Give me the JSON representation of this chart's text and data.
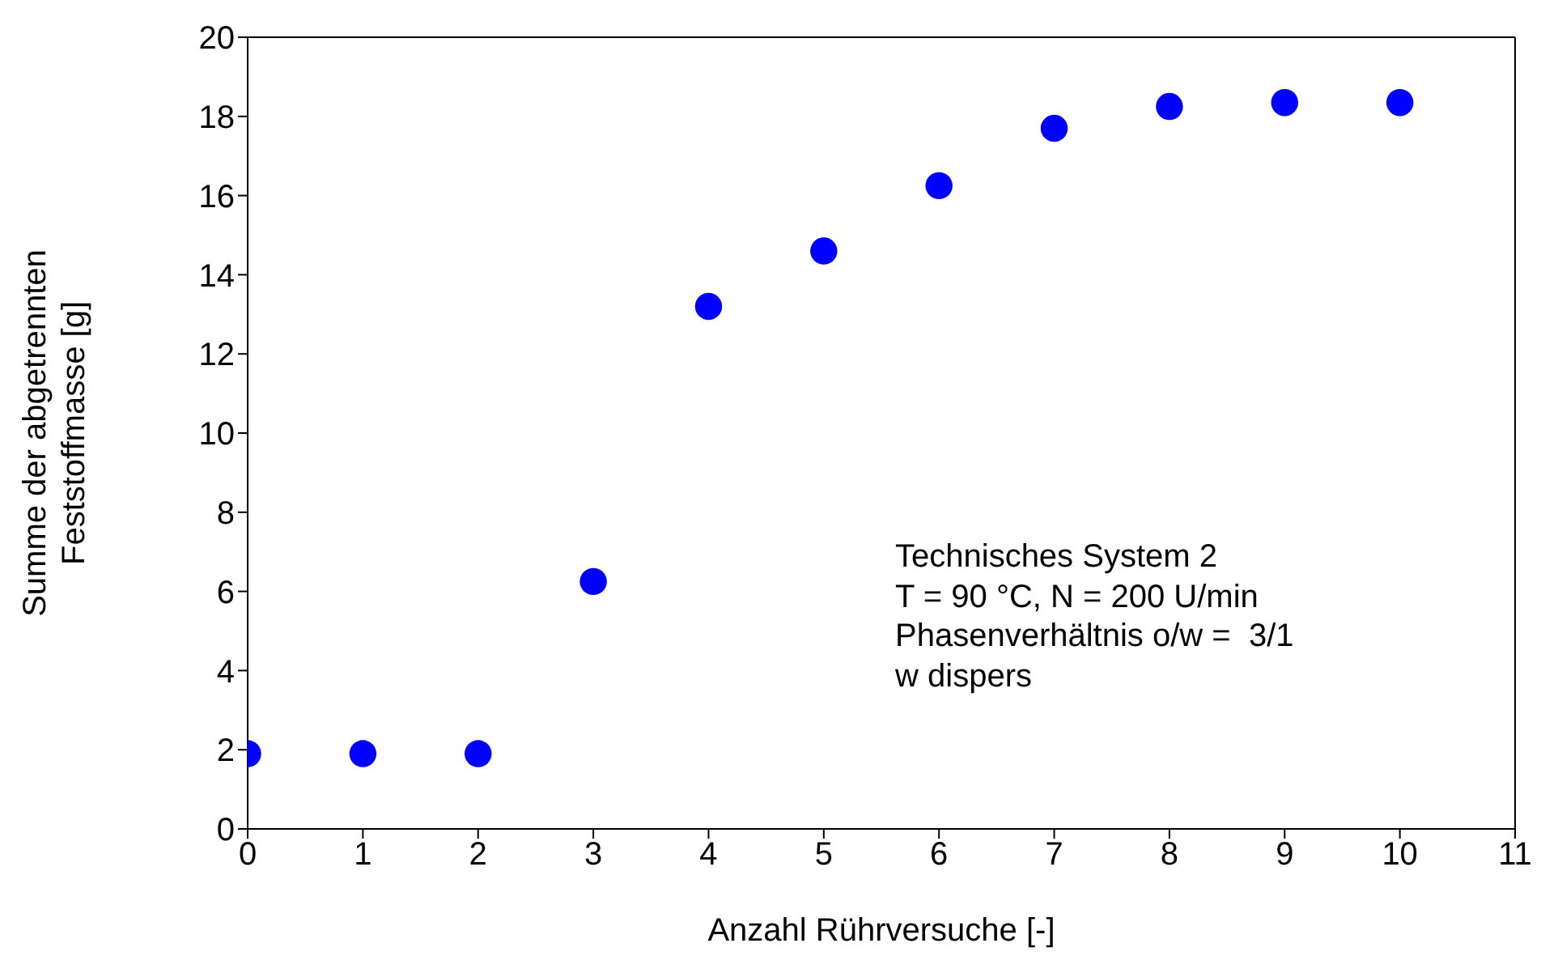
{
  "chart_data": {
    "type": "scatter",
    "xlabel": "Anzahl Rührversuche [-]",
    "ylabel": "Summe der abgetrennten\nFeststoffmasse [g]",
    "x": [
      0,
      1,
      2,
      3,
      4,
      5,
      6,
      7,
      8,
      9,
      10
    ],
    "series": [
      {
        "color": "#0000ff",
        "values": [
          1.9,
          1.9,
          1.9,
          6.25,
          13.2,
          14.6,
          16.25,
          17.7,
          18.25,
          18.35,
          18.35
        ]
      }
    ],
    "xlim": [
      0,
      11
    ],
    "xticks": [
      0,
      1,
      2,
      3,
      4,
      5,
      6,
      7,
      8,
      9,
      10,
      11
    ],
    "ylim": [
      0,
      20
    ],
    "yticks": [
      0,
      2,
      4,
      6,
      8,
      10,
      12,
      14,
      16,
      18,
      20
    ],
    "grid": false,
    "legend": false,
    "marker": "circle",
    "annotations": [
      "Technisches System 2",
      "T = 90 °C, N = 200 U/min",
      "Phasenverhältnis o/w =  3/1",
      "w dispers"
    ]
  }
}
